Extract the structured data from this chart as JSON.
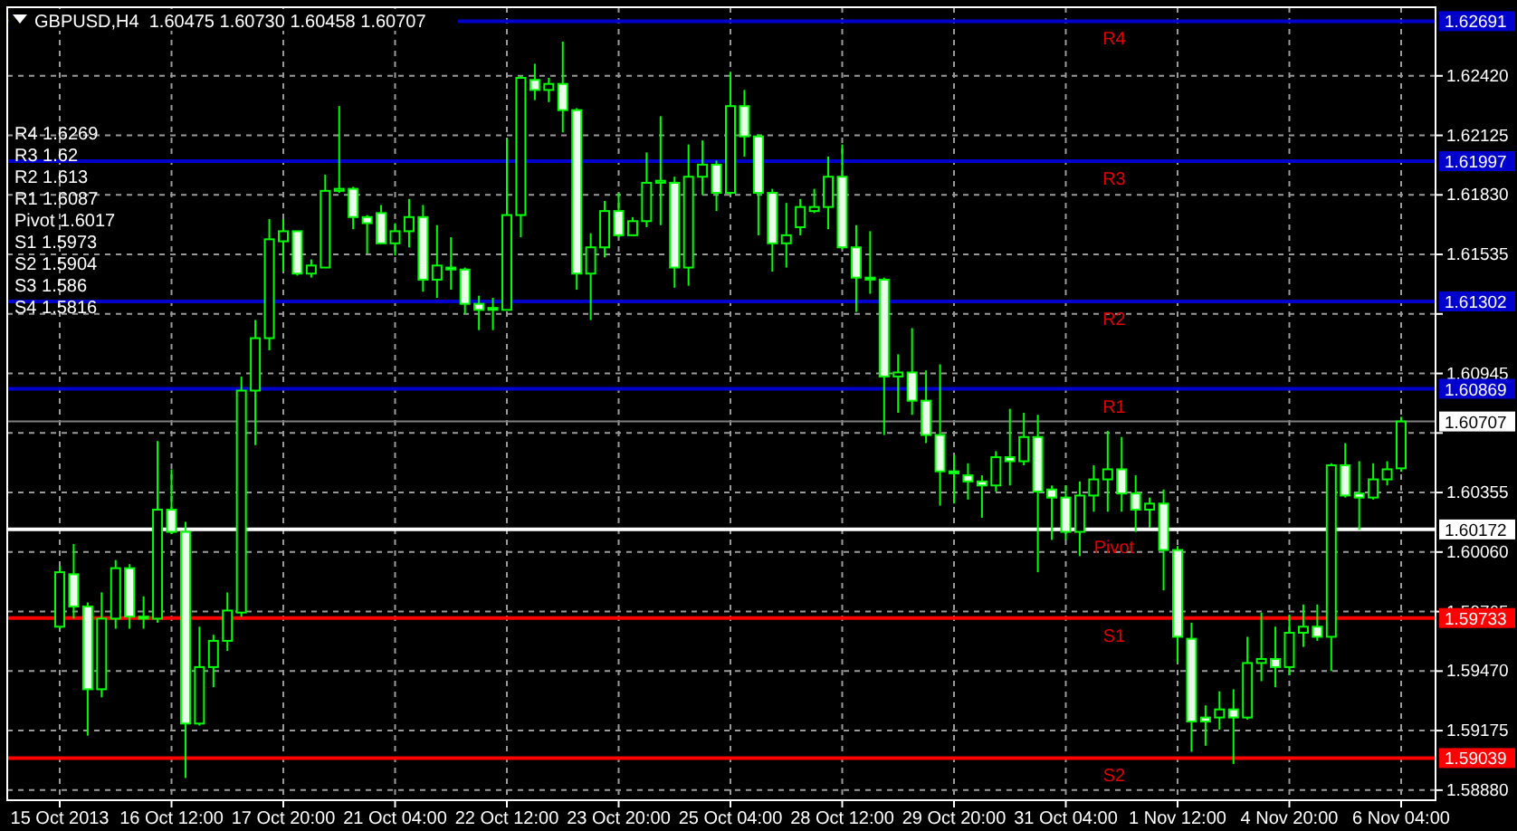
{
  "chart_data": {
    "type": "candlestick",
    "title": "GBPUSD,H4  1.60475 1.60730 1.60458 1.60707",
    "categories": [
      "15 Oct 2013",
      null,
      null,
      null,
      null,
      null,
      null,
      null,
      "16 Oct 12:00",
      null,
      null,
      null,
      null,
      null,
      null,
      null,
      "17 Oct 20:00",
      null,
      null,
      null,
      null,
      null,
      null,
      null,
      "21 Oct 04:00",
      null,
      null,
      null,
      null,
      null,
      null,
      null,
      "22 Oct 12:00",
      null,
      null,
      null,
      null,
      null,
      null,
      null,
      "23 Oct 20:00",
      null,
      null,
      null,
      null,
      null,
      null,
      null,
      "25 Oct 04:00",
      null,
      null,
      null,
      null,
      null,
      null,
      null,
      "28 Oct 12:00",
      null,
      null,
      null,
      null,
      null,
      null,
      null,
      "29 Oct 20:00",
      null,
      null,
      null,
      null,
      null,
      null,
      null,
      "31 Oct 04:00",
      null,
      null,
      null,
      null,
      null,
      null,
      null,
      "1 Nov 12:00",
      null,
      null,
      null,
      null,
      null,
      null,
      null,
      "4 Nov 20:00",
      null,
      null,
      null,
      null,
      null,
      null,
      null,
      "6 Nov 04:00"
    ],
    "ohlc": [
      [
        1.5969,
        1.5999,
        1.5968,
        1.5996
      ],
      [
        1.5995,
        1.601,
        1.5973,
        1.5979
      ],
      [
        1.5979,
        1.5981,
        1.5915,
        1.5938
      ],
      [
        1.5938,
        1.5986,
        1.5934,
        1.5973
      ],
      [
        1.5973,
        1.6002,
        1.5968,
        1.5998
      ],
      [
        1.5998,
        1.6,
        1.5968,
        1.5974
      ],
      [
        1.5974,
        1.5984,
        1.5968,
        1.5973
      ],
      [
        1.5973,
        1.6061,
        1.5971,
        1.6027
      ],
      [
        1.6027,
        1.6047,
        1.6015,
        1.6016
      ],
      [
        1.6016,
        1.6021,
        1.5894,
        1.5921
      ],
      [
        1.5921,
        1.5969,
        1.592,
        1.5949
      ],
      [
        1.5949,
        1.5965,
        1.5939,
        1.5962
      ],
      [
        1.5962,
        1.5986,
        1.5957,
        1.5977
      ],
      [
        1.5976,
        1.6093,
        1.5974,
        1.6086
      ],
      [
        1.6086,
        1.6121,
        1.6059,
        1.6112
      ],
      [
        1.6112,
        1.6171,
        1.6106,
        1.6161
      ],
      [
        1.616,
        1.6171,
        1.6145,
        1.6165
      ],
      [
        1.6165,
        1.6165,
        1.6143,
        1.6144
      ],
      [
        1.6144,
        1.6151,
        1.6142,
        1.6148
      ],
      [
        1.6147,
        1.6193,
        1.6147,
        1.6185
      ],
      [
        1.6185,
        1.6227,
        1.6184,
        1.6186
      ],
      [
        1.6186,
        1.6187,
        1.6166,
        1.6172
      ],
      [
        1.6172,
        1.6173,
        1.6154,
        1.6169
      ],
      [
        1.6174,
        1.6178,
        1.6159,
        1.6159
      ],
      [
        1.6159,
        1.6169,
        1.6153,
        1.6165
      ],
      [
        1.6165,
        1.6181,
        1.6157,
        1.6172
      ],
      [
        1.6172,
        1.6178,
        1.6135,
        1.6141
      ],
      [
        1.6141,
        1.6168,
        1.6132,
        1.6148
      ],
      [
        1.6147,
        1.6162,
        1.6136,
        1.6146
      ],
      [
        1.6146,
        1.6147,
        1.6124,
        1.6129
      ],
      [
        1.6129,
        1.6133,
        1.6116,
        1.6126
      ],
      [
        1.6127,
        1.6132,
        1.6116,
        1.6126
      ],
      [
        1.6126,
        1.6211,
        1.6126,
        1.6173
      ],
      [
        1.6173,
        1.6242,
        1.6162,
        1.6241
      ],
      [
        1.624,
        1.6248,
        1.623,
        1.6235
      ],
      [
        1.6235,
        1.6241,
        1.6229,
        1.6238
      ],
      [
        1.6238,
        1.6259,
        1.6214,
        1.6225
      ],
      [
        1.6225,
        1.6226,
        1.6136,
        1.6144
      ],
      [
        1.6144,
        1.6164,
        1.6121,
        1.6157
      ],
      [
        1.6157,
        1.618,
        1.6152,
        1.6175
      ],
      [
        1.6175,
        1.6184,
        1.6162,
        1.6163
      ],
      [
        1.6163,
        1.6172,
        1.6163,
        1.617
      ],
      [
        1.617,
        1.6204,
        1.6167,
        1.6189
      ],
      [
        1.6189,
        1.6222,
        1.6168,
        1.619
      ],
      [
        1.6189,
        1.6192,
        1.6137,
        1.6147
      ],
      [
        1.6147,
        1.6208,
        1.6138,
        1.6192
      ],
      [
        1.6192,
        1.621,
        1.6183,
        1.6198
      ],
      [
        1.6198,
        1.62,
        1.6175,
        1.6184
      ],
      [
        1.6184,
        1.6244,
        1.6183,
        1.6227
      ],
      [
        1.6227,
        1.6235,
        1.6202,
        1.6212
      ],
      [
        1.6212,
        1.6213,
        1.6163,
        1.6184
      ],
      [
        1.6184,
        1.6186,
        1.6145,
        1.6159
      ],
      [
        1.6159,
        1.6179,
        1.6147,
        1.6163
      ],
      [
        1.6167,
        1.6181,
        1.6163,
        1.6177
      ],
      [
        1.6175,
        1.6186,
        1.6174,
        1.6177
      ],
      [
        1.6177,
        1.6202,
        1.6166,
        1.6192
      ],
      [
        1.6192,
        1.6208,
        1.6156,
        1.6157
      ],
      [
        1.6157,
        1.6168,
        1.6125,
        1.6142
      ],
      [
        1.6142,
        1.6165,
        1.6134,
        1.6141
      ],
      [
        1.6141,
        1.6142,
        1.6064,
        1.6093
      ],
      [
        1.6093,
        1.6104,
        1.6075,
        1.6095
      ],
      [
        1.6095,
        1.6117,
        1.6074,
        1.6081
      ],
      [
        1.6081,
        1.6096,
        1.606,
        1.6064
      ],
      [
        1.6064,
        1.6099,
        1.6029,
        1.6046
      ],
      [
        1.6046,
        1.6054,
        1.603,
        1.6045
      ],
      [
        1.6044,
        1.605,
        1.6032,
        1.6041
      ],
      [
        1.6041,
        1.6044,
        1.6023,
        1.6039
      ],
      [
        1.6039,
        1.6056,
        1.6036,
        1.6053
      ],
      [
        1.6053,
        1.6077,
        1.6039,
        1.6051
      ],
      [
        1.6051,
        1.6075,
        1.6049,
        1.6063
      ],
      [
        1.6063,
        1.6074,
        1.5996,
        1.6036
      ],
      [
        1.6037,
        1.6039,
        1.6012,
        1.6033
      ],
      [
        1.6033,
        1.6039,
        1.6012,
        1.6016
      ],
      [
        1.6016,
        1.6041,
        1.6004,
        1.6034
      ],
      [
        1.6034,
        1.6049,
        1.6026,
        1.6042
      ],
      [
        1.6042,
        1.6066,
        1.6026,
        1.6047
      ],
      [
        1.6047,
        1.6063,
        1.6026,
        1.6035
      ],
      [
        1.6035,
        1.6044,
        1.6016,
        1.6027
      ],
      [
        1.6027,
        1.6033,
        1.6018,
        1.603
      ],
      [
        1.603,
        1.6037,
        1.5987,
        1.6007
      ],
      [
        1.6007,
        1.6009,
        1.5951,
        1.5964
      ],
      [
        1.5963,
        1.5971,
        1.5907,
        1.5922
      ],
      [
        1.5924,
        1.593,
        1.591,
        1.5922
      ],
      [
        1.5924,
        1.5937,
        1.5918,
        1.5928
      ],
      [
        1.5928,
        1.5938,
        1.5901,
        1.5924
      ],
      [
        1.5924,
        1.5964,
        1.5923,
        1.5951
      ],
      [
        1.5951,
        1.5976,
        1.5942,
        1.5953
      ],
      [
        1.5953,
        1.5969,
        1.5939,
        1.5949
      ],
      [
        1.5949,
        1.5975,
        1.5945,
        1.5966
      ],
      [
        1.5966,
        1.598,
        1.5959,
        1.5969
      ],
      [
        1.5969,
        1.598,
        1.5962,
        1.5964
      ],
      [
        1.5964,
        1.605,
        1.5947,
        1.6049
      ],
      [
        1.6049,
        1.606,
        1.6033,
        1.6034
      ],
      [
        1.6035,
        1.6051,
        1.6017,
        1.6033
      ],
      [
        1.6033,
        1.605,
        1.6032,
        1.6042
      ],
      [
        1.6042,
        1.6051,
        1.6039,
        1.6047
      ],
      [
        1.60475,
        1.6073,
        1.60458,
        1.60707
      ]
    ],
    "color": "#00ff00",
    "ylim": [
      1.5883,
      1.6276
    ],
    "yticks": [
      {
        "value": 1.6242,
        "label": "1.62420"
      },
      1.62125,
      {
        "value": 1.6183,
        "label": "1.61830"
      },
      1.61535,
      {
        "value": 1.6124,
        "label": null
      },
      1.60945,
      {
        "value": 1.6065,
        "label": null
      },
      1.60355,
      {
        "value": 1.6006,
        "label": "1.60060"
      },
      1.59765,
      {
        "value": 1.5947,
        "label": "1.59470"
      },
      1.59175,
      {
        "value": 1.5888,
        "label": "1.58880"
      }
    ],
    "grid": true,
    "ref_lines": [
      {
        "axis": "y",
        "value": 1.62691,
        "label": "1.62691",
        "color": "#0000cc"
      },
      {
        "axis": "y",
        "value": 1.61997,
        "label": "1.61997",
        "color": "#0000cc"
      },
      {
        "axis": "y",
        "value": 1.61302,
        "label": "1.61302",
        "color": "#0000cc"
      },
      {
        "axis": "y",
        "value": 1.60869,
        "label": "1.60869",
        "color": "#0000cc"
      },
      {
        "axis": "y",
        "value": 1.60707,
        "label": "1.60707",
        "color": "#808080"
      },
      {
        "axis": "y",
        "value": 1.60172,
        "label": "1.60172",
        "color": "#ffffff"
      },
      {
        "axis": "y",
        "value": 1.59733,
        "label": "1.59733",
        "color": "#ff0000"
      },
      {
        "axis": "y",
        "value": 1.59039,
        "label": "1.59039",
        "color": "#ff0000"
      }
    ],
    "annotations": [
      "R4 1.6269",
      "R3 1.62",
      "R2 1.613",
      "R1 1.6087",
      "Pivot 1.6017",
      "S1 1.5973",
      "S2 1.5904",
      "S3 1.586",
      "S4 1.5816",
      {
        "text": "R4",
        "y": 1.62691
      },
      {
        "text": "R3",
        "y": 1.61997
      },
      {
        "text": "R2",
        "y": 1.61302
      },
      {
        "text": "R1",
        "y": 1.60869
      },
      {
        "text": "Pivot",
        "y": 1.60172
      },
      {
        "text": "S1",
        "y": 1.59733
      },
      {
        "text": "S2",
        "y": 1.59039
      }
    ]
  }
}
